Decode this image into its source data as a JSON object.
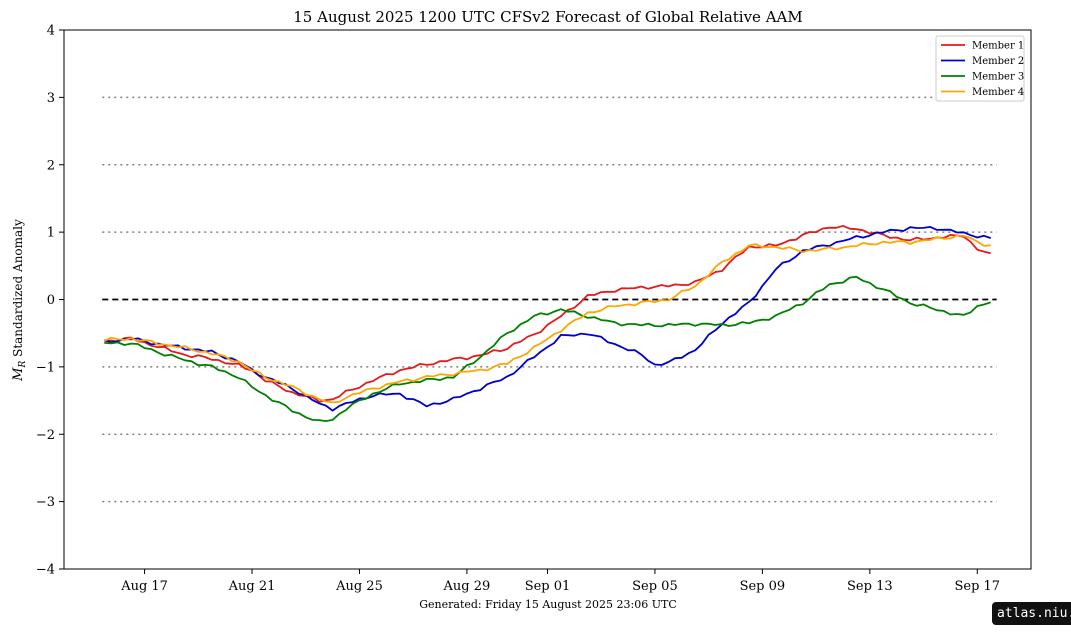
{
  "chart_data": {
    "type": "line",
    "title": "15  August  2025 1200 UTC   CFSv2 Forecast of Global Relative AAM",
    "ylabel": "$M_R$ Standardized Anomaly",
    "ylabel_main": "M",
    "ylabel_sub": "R",
    "ylabel_rest": " Standardized Anomaly",
    "xlabel": "",
    "x_start": "2025-08-15T12:00",
    "x_end": "2025-09-17T12:00",
    "xlim": [
      "2025-08-14",
      "2025-09-19"
    ],
    "ylim": [
      -4,
      4
    ],
    "x_ticks": [
      {
        "date": "2025-08-17",
        "label": "Aug 17"
      },
      {
        "date": "2025-08-21",
        "label": "Aug 21"
      },
      {
        "date": "2025-08-25",
        "label": "Aug 25"
      },
      {
        "date": "2025-08-29",
        "label": "Aug 29"
      },
      {
        "date": "2025-09-01",
        "label": "Sep 01"
      },
      {
        "date": "2025-09-05",
        "label": "Sep 05"
      },
      {
        "date": "2025-09-09",
        "label": "Sep 09"
      },
      {
        "date": "2025-09-13",
        "label": "Sep 13"
      },
      {
        "date": "2025-09-17",
        "label": "Sep 17"
      }
    ],
    "y_ticks": [
      {
        "value": 4,
        "label": "4"
      },
      {
        "value": 3,
        "label": "3"
      },
      {
        "value": 2,
        "label": "2"
      },
      {
        "value": 1,
        "label": "1"
      },
      {
        "value": 0,
        "label": "0"
      },
      {
        "value": -1,
        "label": "−1"
      },
      {
        "value": -2,
        "label": "−2"
      },
      {
        "value": -3,
        "label": "−3"
      },
      {
        "value": -4,
        "label": "−4"
      }
    ],
    "reference_lines": [
      {
        "y": 3,
        "style": "dotted",
        "color": "#808080"
      },
      {
        "y": 2,
        "style": "dotted",
        "color": "#808080"
      },
      {
        "y": 1,
        "style": "dotted",
        "color": "#808080"
      },
      {
        "y": 0,
        "style": "dashed",
        "color": "#000000"
      },
      {
        "y": -1,
        "style": "dotted",
        "color": "#808080"
      },
      {
        "y": -2,
        "style": "dotted",
        "color": "#808080"
      },
      {
        "y": -3,
        "style": "dotted",
        "color": "#808080"
      }
    ],
    "grid": false,
    "legend_position": "top-right",
    "series": [
      {
        "name": "Member 1",
        "color": "#e41a1c",
        "keypoints": [
          [
            "2025-08-15T12:00",
            -0.62
          ],
          [
            "2025-08-16T12:00",
            -0.58
          ],
          [
            "2025-08-17T12:00",
            -0.7
          ],
          [
            "2025-08-18T12:00",
            -0.82
          ],
          [
            "2025-08-19T12:00",
            -0.88
          ],
          [
            "2025-08-20T12:00",
            -0.98
          ],
          [
            "2025-08-21T00:00",
            -1.05
          ],
          [
            "2025-08-21T12:00",
            -1.2
          ],
          [
            "2025-08-22T12:00",
            -1.38
          ],
          [
            "2025-08-23T12:00",
            -1.5
          ],
          [
            "2025-08-24T00:00",
            -1.48
          ],
          [
            "2025-08-24T12:00",
            -1.38
          ],
          [
            "2025-08-25T12:00",
            -1.2
          ],
          [
            "2025-08-26T12:00",
            -1.05
          ],
          [
            "2025-08-27T12:00",
            -0.96
          ],
          [
            "2025-08-28T12:00",
            -0.89
          ],
          [
            "2025-08-29T12:00",
            -0.83
          ],
          [
            "2025-08-30T12:00",
            -0.72
          ],
          [
            "2025-08-31T12:00",
            -0.52
          ],
          [
            "2025-09-01T12:00",
            -0.25
          ],
          [
            "2025-09-02T12:00",
            0.05
          ],
          [
            "2025-09-03T12:00",
            0.14
          ],
          [
            "2025-09-04T12:00",
            0.18
          ],
          [
            "2025-09-05T12:00",
            0.2
          ],
          [
            "2025-09-06T12:00",
            0.25
          ],
          [
            "2025-09-07T12:00",
            0.45
          ],
          [
            "2025-09-08T12:00",
            0.78
          ],
          [
            "2025-09-09T12:00",
            0.8
          ],
          [
            "2025-09-10T12:00",
            0.95
          ],
          [
            "2025-09-11T12:00",
            1.08
          ],
          [
            "2025-09-12T12:00",
            1.05
          ],
          [
            "2025-09-13T12:00",
            0.95
          ],
          [
            "2025-09-14T12:00",
            0.88
          ],
          [
            "2025-09-15T12:00",
            0.92
          ],
          [
            "2025-09-16T12:00",
            0.95
          ],
          [
            "2025-09-17T00:00",
            0.75
          ],
          [
            "2025-09-17T12:00",
            0.66
          ]
        ]
      },
      {
        "name": "Member 2",
        "color": "#0000cd",
        "keypoints": [
          [
            "2025-08-15T12:00",
            -0.63
          ],
          [
            "2025-08-16T12:00",
            -0.58
          ],
          [
            "2025-08-17T12:00",
            -0.66
          ],
          [
            "2025-08-18T12:00",
            -0.72
          ],
          [
            "2025-08-19T12:00",
            -0.78
          ],
          [
            "2025-08-20T12:00",
            -0.92
          ],
          [
            "2025-08-21T00:00",
            -1.05
          ],
          [
            "2025-08-21T12:00",
            -1.15
          ],
          [
            "2025-08-22T12:00",
            -1.32
          ],
          [
            "2025-08-23T12:00",
            -1.55
          ],
          [
            "2025-08-24T00:00",
            -1.62
          ],
          [
            "2025-08-24T12:00",
            -1.55
          ],
          [
            "2025-08-25T12:00",
            -1.42
          ],
          [
            "2025-08-26T12:00",
            -1.4
          ],
          [
            "2025-08-27T12:00",
            -1.58
          ],
          [
            "2025-08-28T12:00",
            -1.48
          ],
          [
            "2025-08-29T12:00",
            -1.32
          ],
          [
            "2025-08-30T12:00",
            -1.15
          ],
          [
            "2025-08-31T12:00",
            -0.85
          ],
          [
            "2025-09-01T12:00",
            -0.55
          ],
          [
            "2025-09-02T12:00",
            -0.5
          ],
          [
            "2025-09-03T12:00",
            -0.66
          ],
          [
            "2025-09-04T12:00",
            -0.82
          ],
          [
            "2025-09-05T00:00",
            -0.97
          ],
          [
            "2025-09-05T12:00",
            -0.94
          ],
          [
            "2025-09-06T12:00",
            -0.75
          ],
          [
            "2025-09-07T12:00",
            -0.35
          ],
          [
            "2025-09-08T12:00",
            -0.05
          ],
          [
            "2025-09-09T12:00",
            0.45
          ],
          [
            "2025-09-10T12:00",
            0.72
          ],
          [
            "2025-09-11T12:00",
            0.82
          ],
          [
            "2025-09-12T12:00",
            0.92
          ],
          [
            "2025-09-13T12:00",
            1.0
          ],
          [
            "2025-09-14T12:00",
            1.06
          ],
          [
            "2025-09-15T12:00",
            1.06
          ],
          [
            "2025-09-16T12:00",
            0.98
          ],
          [
            "2025-09-17T12:00",
            0.91
          ]
        ]
      },
      {
        "name": "Member 3",
        "color": "#008000",
        "keypoints": [
          [
            "2025-08-15T12:00",
            -0.65
          ],
          [
            "2025-08-16T12:00",
            -0.65
          ],
          [
            "2025-08-17T12:00",
            -0.78
          ],
          [
            "2025-08-18T12:00",
            -0.9
          ],
          [
            "2025-08-19T12:00",
            -1.0
          ],
          [
            "2025-08-20T12:00",
            -1.15
          ],
          [
            "2025-08-21T00:00",
            -1.3
          ],
          [
            "2025-08-21T12:00",
            -1.42
          ],
          [
            "2025-08-22T12:00",
            -1.65
          ],
          [
            "2025-08-23T12:00",
            -1.82
          ],
          [
            "2025-08-24T00:00",
            -1.78
          ],
          [
            "2025-08-24T12:00",
            -1.62
          ],
          [
            "2025-08-25T12:00",
            -1.4
          ],
          [
            "2025-08-26T12:00",
            -1.25
          ],
          [
            "2025-08-27T12:00",
            -1.2
          ],
          [
            "2025-08-28T12:00",
            -1.15
          ],
          [
            "2025-08-29T12:00",
            -0.85
          ],
          [
            "2025-08-30T12:00",
            -0.5
          ],
          [
            "2025-08-31T12:00",
            -0.25
          ],
          [
            "2025-09-01T12:00",
            -0.15
          ],
          [
            "2025-09-02T12:00",
            -0.25
          ],
          [
            "2025-09-03T12:00",
            -0.35
          ],
          [
            "2025-09-04T12:00",
            -0.38
          ],
          [
            "2025-09-05T12:00",
            -0.38
          ],
          [
            "2025-09-06T12:00",
            -0.36
          ],
          [
            "2025-09-07T12:00",
            -0.38
          ],
          [
            "2025-09-08T12:00",
            -0.35
          ],
          [
            "2025-09-09T12:00",
            -0.25
          ],
          [
            "2025-09-10T12:00",
            -0.05
          ],
          [
            "2025-09-11T12:00",
            0.22
          ],
          [
            "2025-09-12T12:00",
            0.33
          ],
          [
            "2025-09-13T12:00",
            0.15
          ],
          [
            "2025-09-14T12:00",
            -0.05
          ],
          [
            "2025-09-15T12:00",
            -0.15
          ],
          [
            "2025-09-16T12:00",
            -0.25
          ],
          [
            "2025-09-17T00:00",
            -0.1
          ],
          [
            "2025-09-17T12:00",
            -0.03
          ]
        ]
      },
      {
        "name": "Member 4",
        "color": "#ffa500",
        "keypoints": [
          [
            "2025-08-15T12:00",
            -0.6
          ],
          [
            "2025-08-16T12:00",
            -0.58
          ],
          [
            "2025-08-17T12:00",
            -0.65
          ],
          [
            "2025-08-18T12:00",
            -0.72
          ],
          [
            "2025-08-19T12:00",
            -0.8
          ],
          [
            "2025-08-20T12:00",
            -0.92
          ],
          [
            "2025-08-21T00:00",
            -1.05
          ],
          [
            "2025-08-21T12:00",
            -1.15
          ],
          [
            "2025-08-22T12:00",
            -1.3
          ],
          [
            "2025-08-23T12:00",
            -1.48
          ],
          [
            "2025-08-24T00:00",
            -1.55
          ],
          [
            "2025-08-24T12:00",
            -1.45
          ],
          [
            "2025-08-25T12:00",
            -1.32
          ],
          [
            "2025-08-26T12:00",
            -1.22
          ],
          [
            "2025-08-27T12:00",
            -1.15
          ],
          [
            "2025-08-28T12:00",
            -1.1
          ],
          [
            "2025-08-29T12:00",
            -1.05
          ],
          [
            "2025-08-30T12:00",
            -0.95
          ],
          [
            "2025-08-31T12:00",
            -0.72
          ],
          [
            "2025-09-01T12:00",
            -0.45
          ],
          [
            "2025-09-02T12:00",
            -0.2
          ],
          [
            "2025-09-03T12:00",
            -0.1
          ],
          [
            "2025-09-04T12:00",
            -0.05
          ],
          [
            "2025-09-05T12:00",
            0.0
          ],
          [
            "2025-09-06T12:00",
            0.2
          ],
          [
            "2025-09-07T12:00",
            0.55
          ],
          [
            "2025-09-08T12:00",
            0.8
          ],
          [
            "2025-09-09T12:00",
            0.78
          ],
          [
            "2025-09-10T12:00",
            0.72
          ],
          [
            "2025-09-11T12:00",
            0.75
          ],
          [
            "2025-09-12T12:00",
            0.8
          ],
          [
            "2025-09-13T12:00",
            0.85
          ],
          [
            "2025-09-14T12:00",
            0.85
          ],
          [
            "2025-09-15T12:00",
            0.9
          ],
          [
            "2025-09-16T12:00",
            0.95
          ],
          [
            "2025-09-17T00:00",
            0.85
          ],
          [
            "2025-09-17T12:00",
            0.8
          ]
        ]
      }
    ]
  },
  "footer": {
    "generated": "Generated: Friday  15  August  2025  23:06 UTC"
  },
  "badge": {
    "text": "atlas.niu.edu"
  }
}
